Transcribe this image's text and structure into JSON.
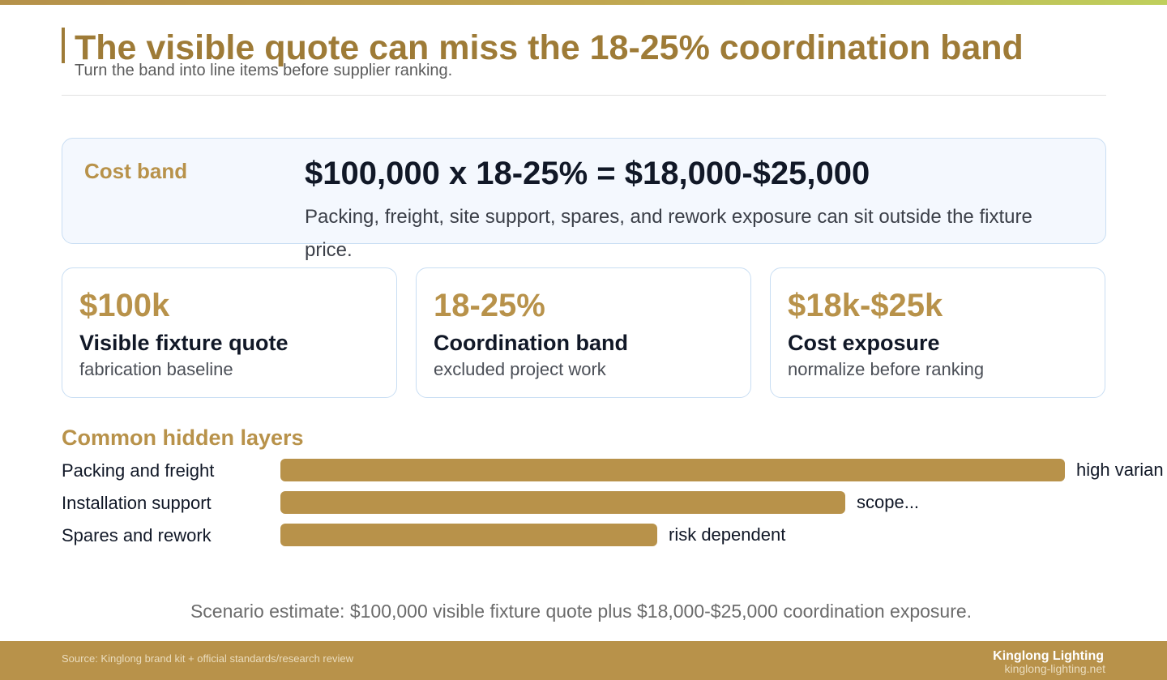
{
  "header": {
    "title": "The visible quote can miss the 18-25% coordination band",
    "subtitle": "Turn the band into line items before supplier ranking.",
    "colors": {
      "accent": "#b8924a",
      "title": "#9e7b37"
    }
  },
  "band": {
    "label": "Cost band",
    "formula": "$100,000 x 18-25% = $18,000-$25,000",
    "note": "Packing, freight, site support, spares, and rework exposure can sit outside the fixture price."
  },
  "stats": [
    {
      "value": "$100k",
      "title": "Visible fixture quote",
      "desc": "fabrication baseline"
    },
    {
      "value": "18-25%",
      "title": "Coordination band",
      "desc": "excluded project work"
    },
    {
      "value": "$18k-$25k",
      "title": "Cost exposure",
      "desc": "normalize before ranking"
    }
  ],
  "layers": {
    "heading": "Common hidden layers",
    "items": [
      {
        "label": "Packing and freight",
        "note": "high varian",
        "level": 1.0
      },
      {
        "label": "Installation support",
        "note": "scope...",
        "level": 0.72
      },
      {
        "label": "Spares and rework",
        "note": "risk dependent",
        "level": 0.48
      }
    ]
  },
  "scenario": "Scenario estimate: $100,000 visible fixture quote plus $18,000-$25,000 coordination exposure.",
  "footer": {
    "source": "Source: Kinglong brand kit + official standards/research review",
    "brand": "Kinglong Lighting",
    "url": "kinglong-lighting.net"
  }
}
